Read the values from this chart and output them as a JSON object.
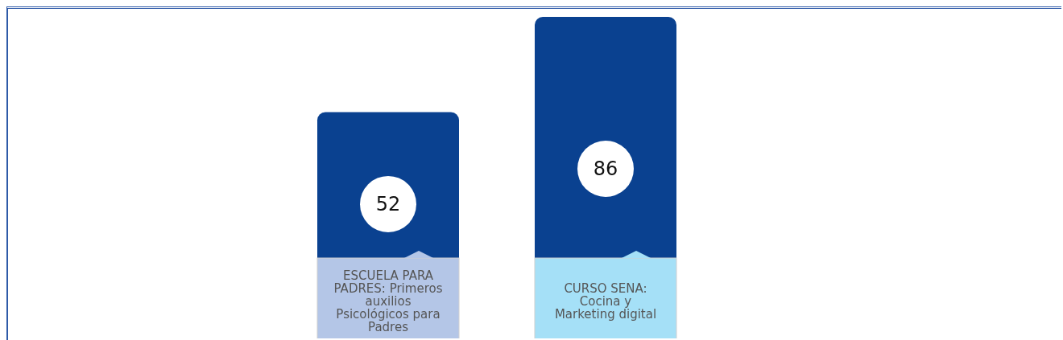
{
  "chart_data": {
    "type": "bar",
    "categories": [
      "ESCUELA PARA PADRES: Primeros auxilios Psicológicos para Padres",
      "CURSO SENA: Cocina y Marketing digital"
    ],
    "values": [
      52,
      86
    ],
    "color": "#0a4190",
    "data_labels": true
  }
}
